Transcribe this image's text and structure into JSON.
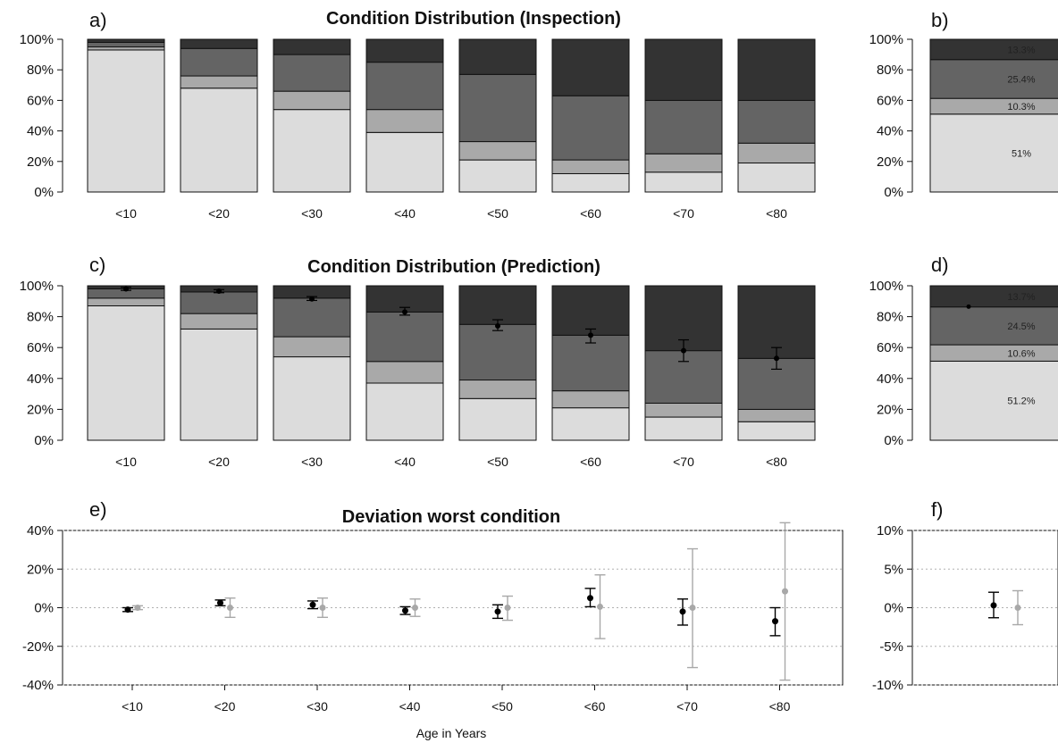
{
  "chart_data": [
    {
      "id": "a",
      "type": "bar",
      "panel_label": "a)",
      "title": "Condition Distribution (Inspection)",
      "stacked": true,
      "categories": [
        "<10",
        "<20",
        "<30",
        "<40",
        "<50",
        "<60",
        "<70",
        "<80"
      ],
      "series": [
        {
          "values": [
            93,
            68,
            54,
            39,
            21,
            12,
            13,
            19
          ]
        },
        {
          "values": [
            2,
            8,
            12,
            15,
            12,
            9,
            12,
            13
          ]
        },
        {
          "values": [
            3,
            18,
            24,
            31,
            44,
            42,
            35,
            28
          ]
        },
        {
          "values": [
            2,
            6,
            10,
            15,
            23,
            37,
            40,
            40
          ]
        }
      ],
      "yticks": [
        "0%",
        "20%",
        "40%",
        "60%",
        "80%",
        "100%"
      ],
      "ylim": [
        0,
        100
      ],
      "colors": [
        "#dcdcdc",
        "#a9a9a9",
        "#646464",
        "#333333"
      ]
    },
    {
      "id": "b",
      "type": "bar",
      "panel_label": "b)",
      "stacked": true,
      "series": [
        {
          "values": [
            51
          ]
        },
        {
          "values": [
            10.3
          ]
        },
        {
          "values": [
            25.4
          ]
        },
        {
          "values": [
            13.3
          ]
        }
      ],
      "segment_labels": [
        "51%",
        "10.3%",
        "25.4%",
        "13.3%"
      ],
      "yticks": [
        "0%",
        "20%",
        "40%",
        "60%",
        "80%",
        "100%"
      ],
      "ylim": [
        0,
        100
      ],
      "colors": [
        "#dcdcdc",
        "#a9a9a9",
        "#646464",
        "#333333"
      ]
    },
    {
      "id": "c",
      "type": "bar",
      "panel_label": "c)",
      "title": "Condition Distribution (Prediction)",
      "stacked": true,
      "categories": [
        "<10",
        "<20",
        "<30",
        "<40",
        "<50",
        "<60",
        "<70",
        "<80"
      ],
      "series": [
        {
          "values": [
            87,
            72,
            54,
            37,
            27,
            21,
            15,
            12
          ]
        },
        {
          "values": [
            5,
            10,
            13,
            14,
            12,
            11,
            9,
            8
          ]
        },
        {
          "values": [
            6,
            14,
            25,
            32,
            36,
            36,
            34,
            33
          ]
        },
        {
          "values": [
            2,
            4,
            8,
            17,
            25,
            32,
            42,
            47
          ]
        }
      ],
      "error_bars": [
        {
          "mean": 98,
          "low": 97,
          "high": 99
        },
        {
          "mean": 96.5,
          "low": 95.5,
          "high": 97.5
        },
        {
          "mean": 91.5,
          "low": 90.5,
          "high": 93
        },
        {
          "mean": 83,
          "low": 81,
          "high": 86
        },
        {
          "mean": 74,
          "low": 71,
          "high": 78
        },
        {
          "mean": 68,
          "low": 63,
          "high": 72
        },
        {
          "mean": 58,
          "low": 51,
          "high": 65
        },
        {
          "mean": 53,
          "low": 46,
          "high": 60
        }
      ],
      "yticks": [
        "0%",
        "20%",
        "40%",
        "60%",
        "80%",
        "100%"
      ],
      "ylim": [
        0,
        100
      ],
      "colors": [
        "#dcdcdc",
        "#a9a9a9",
        "#646464",
        "#333333"
      ]
    },
    {
      "id": "d",
      "type": "bar",
      "panel_label": "d)",
      "stacked": true,
      "series": [
        {
          "values": [
            51.2
          ]
        },
        {
          "values": [
            10.6
          ]
        },
        {
          "values": [
            24.5
          ]
        },
        {
          "values": [
            13.7
          ]
        }
      ],
      "segment_labels": [
        "51.2%",
        "10.6%",
        "24.5%",
        "13.7%"
      ],
      "marker": {
        "value": 86.5
      },
      "yticks": [
        "0%",
        "20%",
        "40%",
        "60%",
        "80%",
        "100%"
      ],
      "ylim": [
        0,
        100
      ],
      "colors": [
        "#dcdcdc",
        "#a9a9a9",
        "#646464",
        "#333333"
      ]
    },
    {
      "id": "e",
      "type": "scatter",
      "panel_label": "e)",
      "title": "Deviation worst condition",
      "xlabel": "Age in Years",
      "categories": [
        "<10",
        "<20",
        "<30",
        "<40",
        "<50",
        "<60",
        "<70",
        "<80"
      ],
      "series": [
        {
          "color": "#000000",
          "values": [
            {
              "y": -1,
              "low": -2,
              "high": 0
            },
            {
              "y": 2.5,
              "low": 1,
              "high": 4
            },
            {
              "y": 1.5,
              "low": -0.5,
              "high": 3.5
            },
            {
              "y": -1.5,
              "low": -3.5,
              "high": 0.5
            },
            {
              "y": -2,
              "low": -5.5,
              "high": 1.5
            },
            {
              "y": 5,
              "low": 0.5,
              "high": 10
            },
            {
              "y": -2,
              "low": -9,
              "high": 4.5
            },
            {
              "y": -7,
              "low": -14.5,
              "high": 0
            }
          ]
        },
        {
          "color": "#a8a8a8",
          "values": [
            {
              "y": 0,
              "low": -1,
              "high": 1
            },
            {
              "y": 0,
              "low": -5,
              "high": 5
            },
            {
              "y": 0,
              "low": -5,
              "high": 5
            },
            {
              "y": 0,
              "low": -4.5,
              "high": 4.5
            },
            {
              "y": 0,
              "low": -6.5,
              "high": 6
            },
            {
              "y": 0.5,
              "low": -16,
              "high": 17
            },
            {
              "y": 0,
              "low": -31,
              "high": 30.5
            },
            {
              "y": 8.5,
              "low": -37.5,
              "high": 44
            }
          ]
        }
      ],
      "yticks": [
        "-40%",
        "-20%",
        "0%",
        "20%",
        "40%"
      ],
      "ylim": [
        -40,
        40
      ],
      "grid": true
    },
    {
      "id": "f",
      "type": "scatter",
      "panel_label": "f)",
      "series": [
        {
          "color": "#000000",
          "values": [
            {
              "y": 0.3,
              "low": -1.3,
              "high": 2
            }
          ]
        },
        {
          "color": "#a8a8a8",
          "values": [
            {
              "y": 0,
              "low": -2.2,
              "high": 2.2
            }
          ]
        }
      ],
      "yticks": [
        "-10%",
        "-5%",
        "0%",
        "5%",
        "10%"
      ],
      "ylim": [
        -10,
        10
      ],
      "grid": true
    }
  ]
}
